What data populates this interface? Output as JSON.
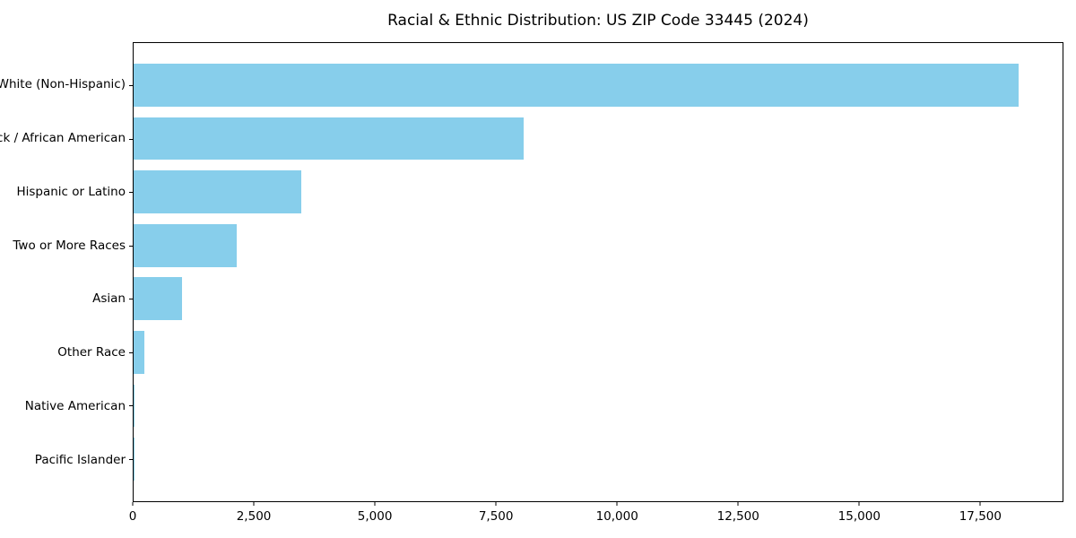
{
  "title": "Racial & Ethnic Distribution: US ZIP Code 33445 (2024)",
  "colors": {
    "bar": "#87CEEB",
    "spine": "#000000",
    "text": "#000000",
    "background": "#ffffff"
  },
  "chart_data": {
    "type": "bar",
    "orientation": "horizontal",
    "title": "Racial & Ethnic Distribution: US ZIP Code 33445 (2024)",
    "categories": [
      "White (Non-Hispanic)",
      "Black / African American",
      "Hispanic or Latino",
      "Two or More Races",
      "Asian",
      "Other Race",
      "Native American",
      "Pacific Islander"
    ],
    "values": [
      18300,
      8075,
      3460,
      2130,
      1000,
      220,
      20,
      10
    ],
    "xlabel": "",
    "ylabel": "",
    "xlim": [
      0,
      19215
    ],
    "x_ticks": [
      0,
      2500,
      5000,
      7500,
      10000,
      12500,
      15000,
      17500
    ],
    "x_tick_labels": [
      "0",
      "2,500",
      "5,000",
      "7,500",
      "10,000",
      "12,500",
      "15,000",
      "17,500"
    ],
    "grid": false,
    "legend": null,
    "bar_color": "#87CEEB",
    "category_order": "largest_at_top"
  }
}
